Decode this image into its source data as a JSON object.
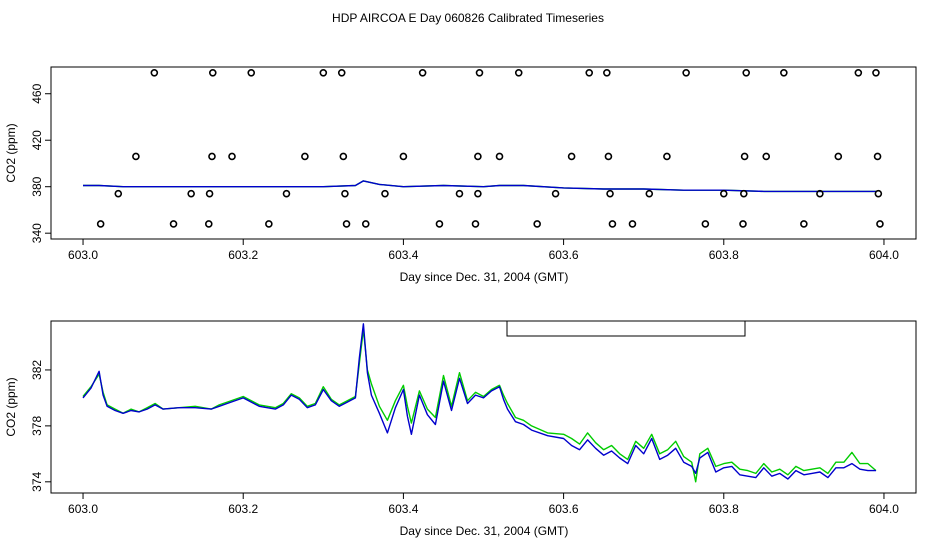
{
  "title": "HDP AIRCOA E  Day 060826  Calibrated Timeseries",
  "colors": {
    "series_a": "#00cc00",
    "series_b": "#0000cc",
    "axis": "#000000"
  },
  "chart_data": [
    {
      "type": "scatter",
      "xlabel": "Day since Dec. 31, 2004 (GMT)",
      "ylabel": "CO2 (ppm)",
      "xlim": [
        602.96,
        604.04
      ],
      "ylim": [
        335,
        483
      ],
      "xticks": [
        603.0,
        603.2,
        603.4,
        603.6,
        603.8,
        604.0
      ],
      "xtick_labels": [
        "603.0",
        "603.2",
        "603.4",
        "603.6",
        "603.8",
        "604.0"
      ],
      "yticks": [
        340,
        380,
        420,
        460
      ],
      "ytick_labels": [
        "340",
        "380",
        "420",
        "460"
      ],
      "points": [
        [
          603.089,
          478
        ],
        [
          603.162,
          478
        ],
        [
          603.21,
          478
        ],
        [
          603.3,
          478
        ],
        [
          603.323,
          478
        ],
        [
          603.424,
          478
        ],
        [
          603.495,
          478
        ],
        [
          603.544,
          478
        ],
        [
          603.632,
          478
        ],
        [
          603.654,
          478
        ],
        [
          603.753,
          478
        ],
        [
          603.828,
          478
        ],
        [
          603.875,
          478
        ],
        [
          603.968,
          478
        ],
        [
          603.99,
          478
        ],
        [
          603.066,
          406
        ],
        [
          603.161,
          406
        ],
        [
          603.186,
          406
        ],
        [
          603.277,
          406
        ],
        [
          603.325,
          406
        ],
        [
          603.4,
          406
        ],
        [
          603.493,
          406
        ],
        [
          603.52,
          406
        ],
        [
          603.61,
          406
        ],
        [
          603.656,
          406
        ],
        [
          603.729,
          406
        ],
        [
          603.826,
          406
        ],
        [
          603.853,
          406
        ],
        [
          603.943,
          406
        ],
        [
          603.992,
          406
        ],
        [
          603.044,
          374
        ],
        [
          603.135,
          374
        ],
        [
          603.158,
          374
        ],
        [
          603.254,
          374
        ],
        [
          603.327,
          374
        ],
        [
          603.377,
          374
        ],
        [
          603.47,
          374
        ],
        [
          603.493,
          374
        ],
        [
          603.59,
          374
        ],
        [
          603.658,
          374
        ],
        [
          603.707,
          374
        ],
        [
          603.8,
          374
        ],
        [
          603.825,
          374
        ],
        [
          603.92,
          374
        ],
        [
          603.993,
          374
        ],
        [
          603.022,
          348
        ],
        [
          603.113,
          348
        ],
        [
          603.157,
          348
        ],
        [
          603.232,
          348
        ],
        [
          603.329,
          348
        ],
        [
          603.353,
          348
        ],
        [
          603.445,
          348
        ],
        [
          603.49,
          348
        ],
        [
          603.567,
          348
        ],
        [
          603.661,
          348
        ],
        [
          603.686,
          348
        ],
        [
          603.777,
          348
        ],
        [
          603.824,
          348
        ],
        [
          603.9,
          348
        ],
        [
          603.995,
          348
        ]
      ],
      "series": [
        {
          "name": "green",
          "color": "#00cc00",
          "x": [
            603.0,
            603.02,
            603.05,
            603.1,
            603.15,
            603.2,
            603.25,
            603.3,
            603.34,
            603.35,
            603.37,
            603.4,
            603.45,
            603.5,
            603.52,
            603.55,
            603.6,
            603.65,
            603.7,
            603.75,
            603.8,
            603.85,
            603.9,
            603.95,
            603.99
          ],
          "values": [
            381,
            381,
            380,
            380,
            380,
            380,
            380,
            380,
            381,
            385,
            382,
            380,
            381,
            380,
            381,
            381,
            379,
            378,
            378,
            377,
            377,
            376,
            376,
            376,
            376
          ]
        },
        {
          "name": "blue",
          "color": "#0000cc",
          "x": [
            603.0,
            603.02,
            603.05,
            603.1,
            603.15,
            603.2,
            603.25,
            603.3,
            603.34,
            603.35,
            603.37,
            603.4,
            603.45,
            603.5,
            603.52,
            603.55,
            603.6,
            603.65,
            603.7,
            603.75,
            603.8,
            603.85,
            603.9,
            603.95,
            603.99
          ],
          "values": [
            381,
            381,
            380,
            380,
            380,
            380,
            380,
            380,
            381,
            385,
            382,
            380,
            381,
            380,
            381,
            381,
            379,
            378,
            378,
            377,
            377,
            376,
            376,
            376,
            376
          ]
        }
      ]
    },
    {
      "type": "line",
      "xlabel": "Day since Dec. 31, 2004 (GMT)",
      "ylabel": "CO2 (ppm)",
      "xlim": [
        602.96,
        604.04
      ],
      "ylim": [
        373.2,
        385.5
      ],
      "xticks": [
        603.0,
        603.2,
        603.4,
        603.6,
        603.8,
        604.0
      ],
      "xtick_labels": [
        "603.0",
        "603.2",
        "603.4",
        "603.6",
        "603.8",
        "604.0"
      ],
      "yticks": [
        374,
        378,
        382
      ],
      "ytick_labels": [
        "374",
        "378",
        "382"
      ],
      "series": [
        {
          "name": "green",
          "color": "#00cc00",
          "x": [
            603.0,
            603.01,
            603.02,
            603.025,
            603.03,
            603.04,
            603.05,
            603.06,
            603.07,
            603.08,
            603.09,
            603.1,
            603.12,
            603.14,
            603.16,
            603.17,
            603.18,
            603.2,
            603.22,
            603.24,
            603.25,
            603.26,
            603.27,
            603.28,
            603.29,
            603.3,
            603.31,
            603.32,
            603.33,
            603.34,
            603.345,
            603.35,
            603.355,
            603.36,
            603.37,
            603.38,
            603.39,
            603.4,
            603.405,
            603.41,
            603.42,
            603.43,
            603.44,
            603.45,
            603.46,
            603.47,
            603.48,
            603.49,
            603.5,
            603.51,
            603.52,
            603.525,
            603.53,
            603.54,
            603.55,
            603.56,
            603.58,
            603.6,
            603.61,
            603.62,
            603.63,
            603.64,
            603.65,
            603.66,
            603.67,
            603.68,
            603.69,
            603.7,
            603.71,
            603.72,
            603.73,
            603.74,
            603.75,
            603.76,
            603.765,
            603.77,
            603.78,
            603.79,
            603.8,
            603.81,
            603.82,
            603.83,
            603.84,
            603.85,
            603.86,
            603.87,
            603.88,
            603.89,
            603.9,
            603.91,
            603.92,
            603.93,
            603.94,
            603.95,
            603.96,
            603.97,
            603.98,
            603.99
          ],
          "values": [
            380.1,
            380.8,
            381.7,
            380.4,
            379.5,
            379.2,
            378.9,
            379.2,
            379.0,
            379.3,
            379.6,
            379.2,
            379.3,
            379.4,
            379.2,
            379.5,
            379.7,
            380.1,
            379.5,
            379.3,
            379.6,
            380.3,
            380.0,
            379.4,
            379.6,
            380.8,
            379.9,
            379.5,
            379.8,
            380.1,
            382.5,
            384.9,
            382.0,
            381.0,
            379.4,
            378.4,
            379.8,
            380.9,
            379.4,
            378.2,
            380.5,
            379.2,
            378.6,
            381.6,
            379.4,
            381.8,
            379.8,
            380.4,
            380.1,
            380.6,
            380.9,
            380.2,
            379.6,
            378.6,
            378.4,
            378.0,
            377.5,
            377.4,
            377.1,
            376.7,
            377.5,
            376.8,
            376.3,
            376.6,
            376.0,
            375.6,
            376.9,
            376.4,
            377.4,
            376.0,
            376.3,
            376.9,
            375.8,
            375.4,
            374.0,
            376.0,
            376.4,
            375.1,
            375.3,
            375.4,
            374.9,
            374.8,
            374.6,
            375.3,
            374.7,
            374.9,
            374.5,
            375.1,
            374.8,
            374.9,
            375.0,
            374.6,
            375.4,
            375.4,
            376.1,
            375.3,
            375.3,
            374.8
          ]
        },
        {
          "name": "blue",
          "color": "#0000cc",
          "x": [
            603.0,
            603.01,
            603.02,
            603.025,
            603.03,
            603.04,
            603.05,
            603.06,
            603.07,
            603.08,
            603.09,
            603.1,
            603.12,
            603.14,
            603.16,
            603.17,
            603.18,
            603.2,
            603.22,
            603.24,
            603.25,
            603.26,
            603.27,
            603.28,
            603.29,
            603.3,
            603.31,
            603.32,
            603.33,
            603.34,
            603.345,
            603.35,
            603.355,
            603.36,
            603.37,
            603.38,
            603.39,
            603.4,
            603.405,
            603.41,
            603.42,
            603.43,
            603.44,
            603.45,
            603.46,
            603.47,
            603.48,
            603.49,
            603.5,
            603.51,
            603.52,
            603.525,
            603.53,
            603.54,
            603.55,
            603.56,
            603.58,
            603.6,
            603.61,
            603.62,
            603.63,
            603.64,
            603.65,
            603.66,
            603.67,
            603.68,
            603.69,
            603.7,
            603.71,
            603.72,
            603.73,
            603.74,
            603.75,
            603.76,
            603.765,
            603.77,
            603.78,
            603.79,
            603.8,
            603.81,
            603.82,
            603.83,
            603.84,
            603.85,
            603.86,
            603.87,
            603.88,
            603.89,
            603.9,
            603.91,
            603.92,
            603.93,
            603.94,
            603.95,
            603.96,
            603.97,
            603.98,
            603.99
          ],
          "values": [
            380.0,
            380.7,
            381.9,
            380.2,
            379.4,
            379.1,
            378.9,
            379.1,
            379.0,
            379.2,
            379.5,
            379.2,
            379.3,
            379.3,
            379.2,
            379.4,
            379.6,
            380.0,
            379.4,
            379.2,
            379.5,
            380.2,
            379.9,
            379.3,
            379.5,
            380.6,
            379.8,
            379.4,
            379.7,
            380.0,
            382.9,
            385.3,
            381.8,
            380.2,
            378.9,
            377.5,
            379.3,
            380.6,
            378.7,
            377.4,
            380.2,
            378.8,
            378.1,
            381.2,
            379.1,
            381.4,
            379.6,
            380.2,
            380.0,
            380.5,
            380.8,
            379.9,
            379.2,
            378.3,
            378.1,
            377.7,
            377.3,
            377.1,
            376.6,
            376.3,
            377.0,
            376.4,
            375.9,
            376.2,
            375.7,
            375.3,
            376.6,
            376.0,
            377.1,
            375.6,
            375.9,
            376.4,
            375.4,
            375.1,
            374.6,
            375.7,
            376.1,
            374.7,
            375.0,
            375.1,
            374.5,
            374.4,
            374.3,
            375.0,
            374.4,
            374.6,
            374.2,
            374.8,
            374.5,
            374.6,
            374.7,
            374.3,
            375.0,
            375.0,
            375.3,
            374.9,
            374.8,
            374.8
          ]
        }
      ],
      "legend_placement": "top-center"
    }
  ]
}
